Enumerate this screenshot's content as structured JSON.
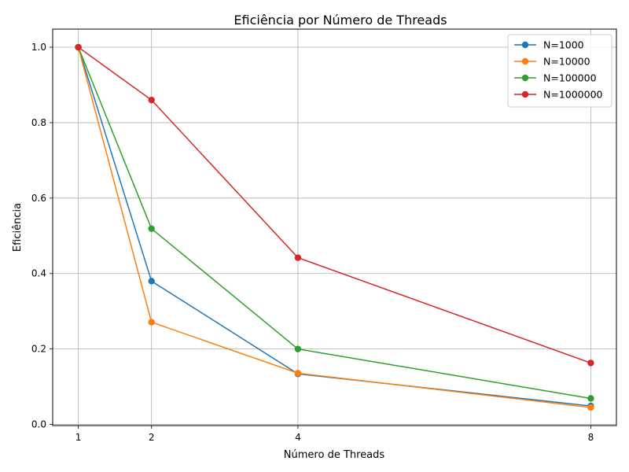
{
  "chart_data": {
    "type": "line",
    "title": "Eficiência por Número de Threads",
    "xlabel": "Número de Threads",
    "ylabel": "Eficiência",
    "x": [
      1,
      2,
      4,
      8
    ],
    "x_ticks": [
      "1",
      "2",
      "4",
      "8"
    ],
    "y_ticks": [
      "0.0",
      "0.2",
      "0.4",
      "0.6",
      "0.8",
      "1.0"
    ],
    "xlim": [
      0.65,
      8.35
    ],
    "ylim": [
      -0.003,
      1.048
    ],
    "grid": true,
    "legend_position": "top-right",
    "series": [
      {
        "name": "N=1000",
        "color": "#1f77b4",
        "values": [
          1.0,
          0.38,
          0.134,
          0.049
        ]
      },
      {
        "name": "N=10000",
        "color": "#ff7f0e",
        "values": [
          1.0,
          0.271,
          0.136,
          0.045
        ]
      },
      {
        "name": "N=100000",
        "color": "#2ca02c",
        "values": [
          1.0,
          0.519,
          0.2,
          0.069
        ]
      },
      {
        "name": "N=1000000",
        "color": "#d62728",
        "values": [
          1.0,
          0.86,
          0.442,
          0.163
        ]
      }
    ]
  }
}
